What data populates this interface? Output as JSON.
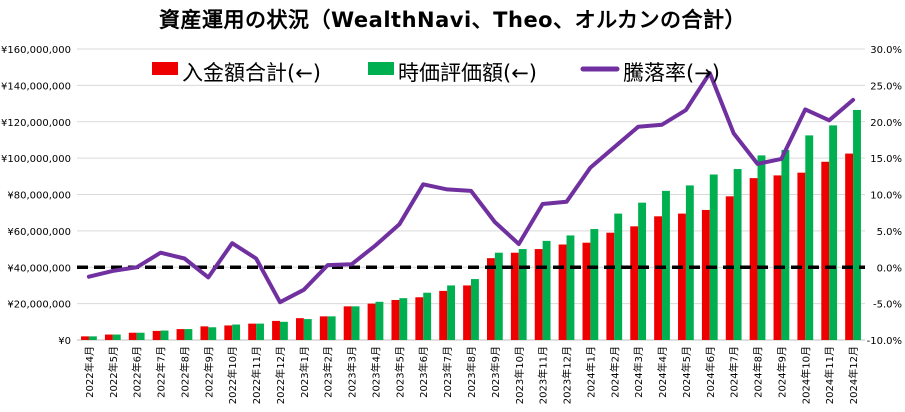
{
  "chart_data": {
    "type": "bar",
    "title": "資産運用の状況（WealthNavi、Theo、オルカンの合計）",
    "categories": [
      "2022年4月",
      "2022年5月",
      "2022年6月",
      "2022年7月",
      "2022年8月",
      "2022年9月",
      "2022年10月",
      "2022年11月",
      "2022年12月",
      "2023年1月",
      "2023年2月",
      "2023年3月",
      "2023年4月",
      "2023年5月",
      "2023年6月",
      "2023年7月",
      "2023年8月",
      "2023年9月",
      "2023年10月",
      "2023年11月",
      "2023年12月",
      "2024年1月",
      "2024年2月",
      "2024年3月",
      "2024年4月",
      "2024年5月",
      "2024年6月",
      "2024年7月",
      "2024年8月",
      "2024年9月",
      "2024年10月",
      "2024年11月",
      "2024年12月"
    ],
    "series": [
      {
        "name": "入金額合計(←)",
        "type": "bar",
        "axis": "left",
        "color": "#ee0000",
        "values": [
          2000000,
          3000000,
          4000000,
          5000000,
          6000000,
          7500000,
          8000000,
          9000000,
          10500000,
          12000000,
          13000000,
          18500000,
          20000000,
          22000000,
          23500000,
          27000000,
          30000000,
          45000000,
          48000000,
          50000000,
          52500000,
          53500000,
          59000000,
          62500000,
          68000000,
          69500000,
          71500000,
          79000000,
          89000000,
          90500000,
          92000000,
          98000000,
          102500000
        ]
      },
      {
        "name": "時価評価額(←)",
        "type": "bar",
        "axis": "left",
        "color": "#00b050",
        "values": [
          2000000,
          3000000,
          4000000,
          5200000,
          6000000,
          7000000,
          8500000,
          9000000,
          10000000,
          11500000,
          13000000,
          18500000,
          21000000,
          23000000,
          26000000,
          30000000,
          33500000,
          48000000,
          50000000,
          54500000,
          57500000,
          61000000,
          69500000,
          75500000,
          82000000,
          85000000,
          91000000,
          94000000,
          101500000,
          104500000,
          112500000,
          118000000,
          126500000
        ]
      },
      {
        "name": "騰落率(→)",
        "type": "line",
        "axis": "right",
        "color": "#7030a0",
        "values": [
          -1.3,
          -0.5,
          0.0,
          2.0,
          1.2,
          -1.4,
          3.3,
          1.2,
          -4.8,
          -3.1,
          0.3,
          0.4,
          3.0,
          5.9,
          11.4,
          10.7,
          10.5,
          6.2,
          3.2,
          8.7,
          9.0,
          13.7,
          16.5,
          19.3,
          19.6,
          21.6,
          26.7,
          18.4,
          14.2,
          14.9,
          21.7,
          20.2,
          23.0
        ]
      }
    ],
    "y_left": {
      "min": 0,
      "max": 160000000,
      "ticks": [
        "¥0",
        "¥20,000,000",
        "¥40,000,000",
        "¥60,000,000",
        "¥80,000,000",
        "¥100,000,000",
        "¥120,000,000",
        "¥140,000,000",
        "¥160,000,000"
      ]
    },
    "y_right": {
      "min": -10,
      "max": 30,
      "ticks": [
        "-10.0%",
        "-5.0%",
        "0.0%",
        "5.0%",
        "10.0%",
        "15.0%",
        "20.0%",
        "25.0%",
        "30.0%"
      ]
    },
    "reference_line": {
      "axis": "right",
      "value": 0,
      "style": "dashed",
      "color": "#000000"
    },
    "legend": {
      "placement": "top-center"
    },
    "grid": true,
    "grid_color": "#d9d9d9"
  }
}
